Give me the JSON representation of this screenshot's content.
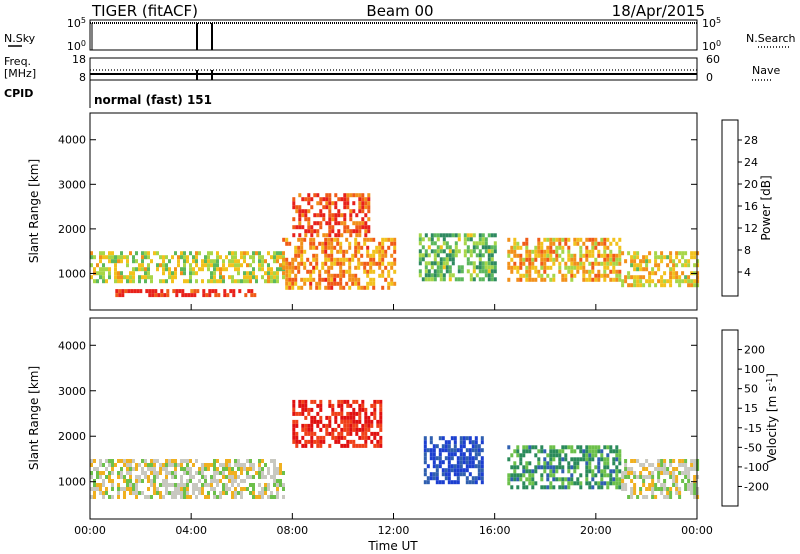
{
  "header": {
    "left_title": "TIGER (fitACF)",
    "center_title": "Beam 00",
    "date": "18/Apr/2015"
  },
  "status_panels": {
    "nsky": {
      "label": "N.Sky",
      "ticks": [
        "10^5",
        "10^0"
      ],
      "right_label": "N.Search",
      "right_ticks": [
        "10^5",
        "10^0"
      ]
    },
    "freq": {
      "label_lines": [
        "Freq.",
        "[MHz]"
      ],
      "ticks": [
        "18",
        "8"
      ],
      "right_label": "Nave",
      "right_ticks": [
        "60",
        "0"
      ]
    },
    "cpid": {
      "label": "CPID",
      "value": "normal (fast) 151"
    }
  },
  "colors": {
    "power_scale": [
      "#1f2bd6",
      "#1b5fa8",
      "#2f8a60",
      "#5cb85c",
      "#a7d648",
      "#f2c21d",
      "#f2901a",
      "#f05a17",
      "#e8201a"
    ],
    "velocity_scale": [
      "#1c3fd0",
      "#2f5fb0",
      "#2a8a5a",
      "#6cc04a",
      "#c8c8c0",
      "#f0b020",
      "#f08020",
      "#f04018",
      "#e01010"
    ]
  },
  "chart_data": [
    {
      "type": "heatmap",
      "title": "Power",
      "ylabel": "Slant Range [km]",
      "y_ticks": [
        "1000",
        "2000",
        "3000",
        "4000"
      ],
      "ylim": [
        180,
        4600
      ],
      "x_ticks": [
        "00:00",
        "04:00",
        "08:00",
        "12:00",
        "16:00",
        "20:00",
        "00:00"
      ],
      "xlim_hours": [
        0,
        24
      ],
      "colorbar": {
        "label": "Power [dB]",
        "ticks": [
          "4",
          "8",
          "12",
          "16",
          "20",
          "24",
          "28"
        ],
        "range": [
          0,
          30
        ]
      },
      "regions": [
        {
          "x0": 0.0,
          "x1": 7.6,
          "y0": 850,
          "y1": 1500,
          "value": 16
        },
        {
          "x0": 7.6,
          "x1": 12.0,
          "y0": 700,
          "y1": 1800,
          "value": 22
        },
        {
          "x0": 8.0,
          "x1": 11.0,
          "y0": 1900,
          "y1": 2800,
          "value": 26
        },
        {
          "x0": 13.0,
          "x1": 16.0,
          "y0": 900,
          "y1": 1900,
          "value": 12
        },
        {
          "x0": 16.5,
          "x1": 21.0,
          "y0": 900,
          "y1": 1800,
          "value": 20
        },
        {
          "x0": 21.0,
          "x1": 24.0,
          "y0": 700,
          "y1": 1500,
          "value": 18
        },
        {
          "x0": 1.0,
          "x1": 6.5,
          "y0": 500,
          "y1": 650,
          "value": 28
        }
      ]
    },
    {
      "type": "heatmap",
      "title": "Velocity",
      "ylabel": "Slant Range [km]",
      "y_ticks": [
        "1000",
        "2000",
        "3000",
        "4000"
      ],
      "ylim": [
        180,
        4600
      ],
      "x_ticks": [
        "00:00",
        "04:00",
        "08:00",
        "12:00",
        "16:00",
        "20:00",
        "00:00"
      ],
      "xlim_hours": [
        0,
        24
      ],
      "xlabel": "Time UT",
      "colorbar": {
        "label": "Velocity [m s^-1]",
        "ticks": [
          "200",
          "100",
          "50",
          "15",
          "-15",
          "-50",
          "-100",
          "-200"
        ],
        "range": [
          -250,
          250
        ]
      },
      "regions": [
        {
          "x0": 0.0,
          "x1": 7.6,
          "y0": 700,
          "y1": 1500,
          "value": 0
        },
        {
          "x0": 8.0,
          "x1": 11.5,
          "y0": 1800,
          "y1": 2800,
          "value": -200
        },
        {
          "x0": 13.2,
          "x1": 15.5,
          "y0": 1000,
          "y1": 2000,
          "value": 200
        },
        {
          "x0": 16.5,
          "x1": 21.0,
          "y0": 900,
          "y1": 1800,
          "value": 100
        },
        {
          "x0": 21.0,
          "x1": 24.0,
          "y0": 700,
          "y1": 1500,
          "value": 0
        }
      ]
    }
  ]
}
